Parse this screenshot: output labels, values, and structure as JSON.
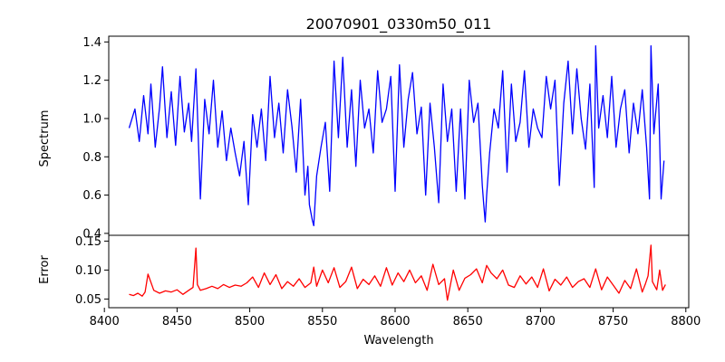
{
  "chart_data": [
    {
      "type": "line",
      "title": "20070901_0330m50_011",
      "xlabel": "",
      "ylabel": "Spectrum",
      "xlim": [
        8403,
        8802
      ],
      "ylim": [
        0.39,
        1.43
      ],
      "yticks": [
        0.4,
        0.6,
        0.8,
        1.0,
        1.2,
        1.4
      ],
      "ytick_labels": [
        "0.4",
        "0.6",
        "0.8",
        "1.0",
        "1.2",
        "1.4"
      ],
      "grid": false,
      "series": [
        {
          "color": "#0000ff",
          "x": [
            8417,
            8421,
            8424,
            8427,
            8430,
            8432,
            8435,
            8438,
            8440,
            8443,
            8446,
            8449,
            8452,
            8455,
            8458,
            8460,
            8463,
            8466,
            8469,
            8472,
            8475,
            8478,
            8481,
            8484,
            8487,
            8490,
            8493,
            8496,
            8499,
            8502,
            8505,
            8508,
            8511,
            8514,
            8517,
            8520,
            8523,
            8526,
            8529,
            8532,
            8535,
            8538,
            8540,
            8541,
            8543,
            8544,
            8546,
            8549,
            8552,
            8555,
            8558,
            8561,
            8564,
            8567,
            8570,
            8573,
            8576,
            8579,
            8582,
            8585,
            8588,
            8591,
            8594,
            8597,
            8600,
            8603,
            8606,
            8609,
            8612,
            8615,
            8618,
            8621,
            8624,
            8627,
            8630,
            8633,
            8636,
            8639,
            8642,
            8645,
            8648,
            8651,
            8654,
            8657,
            8660,
            8661,
            8662,
            8663,
            8665,
            8668,
            8671,
            8674,
            8677,
            8680,
            8683,
            8686,
            8689,
            8692,
            8695,
            8698,
            8701,
            8704,
            8707,
            8710,
            8713,
            8716,
            8719,
            8722,
            8725,
            8728,
            8731,
            8734,
            8737,
            8738,
            8740,
            8743,
            8746,
            8749,
            8752,
            8755,
            8758,
            8761,
            8764,
            8767,
            8770,
            8773,
            8775,
            8776,
            8778,
            8781,
            8783,
            8785
          ],
          "y": [
            0.95,
            1.05,
            0.88,
            1.12,
            0.92,
            1.18,
            0.85,
            1.06,
            1.27,
            0.9,
            1.14,
            0.86,
            1.22,
            0.93,
            1.08,
            0.88,
            1.26,
            0.58,
            1.1,
            0.92,
            1.2,
            0.85,
            1.04,
            0.78,
            0.95,
            0.82,
            0.7,
            0.88,
            0.55,
            1.02,
            0.85,
            1.05,
            0.78,
            1.22,
            0.9,
            1.08,
            0.82,
            1.15,
            0.96,
            0.72,
            1.1,
            0.6,
            0.75,
            0.55,
            0.47,
            0.44,
            0.7,
            0.85,
            0.98,
            0.62,
            1.3,
            0.9,
            1.32,
            0.85,
            1.15,
            0.75,
            1.2,
            0.95,
            1.05,
            0.82,
            1.25,
            0.98,
            1.05,
            1.22,
            0.62,
            1.28,
            0.85,
            1.1,
            1.24,
            0.92,
            1.06,
            0.6,
            1.08,
            0.85,
            0.56,
            1.18,
            0.88,
            1.05,
            0.62,
            1.05,
            0.58,
            1.2,
            0.98,
            1.08,
            0.65,
            0.55,
            0.46,
            0.6,
            0.82,
            1.05,
            0.95,
            1.25,
            0.72,
            1.18,
            0.88,
            0.98,
            1.25,
            0.85,
            1.05,
            0.95,
            0.9,
            1.22,
            1.05,
            1.2,
            0.65,
            1.08,
            1.3,
            0.92,
            1.26,
            1.0,
            0.84,
            1.18,
            0.64,
            1.38,
            0.95,
            1.12,
            0.9,
            1.22,
            0.85,
            1.05,
            1.15,
            0.82,
            1.08,
            0.92,
            1.15,
            0.85,
            0.58,
            1.38,
            0.92,
            1.18,
            0.58,
            0.78
          ]
        }
      ]
    },
    {
      "type": "line",
      "title": "",
      "xlabel": "Wavelength",
      "ylabel": "Error",
      "xlim": [
        8403,
        8802
      ],
      "ylim": [
        0.035,
        0.16
      ],
      "yticks": [
        0.05,
        0.1,
        0.15
      ],
      "ytick_labels": [
        "0.05",
        "0.10",
        "0.15"
      ],
      "xticks": [
        8400,
        8450,
        8500,
        8550,
        8600,
        8650,
        8700,
        8750,
        8800
      ],
      "xtick_labels": [
        "8400",
        "8450",
        "8500",
        "8550",
        "8600",
        "8650",
        "8700",
        "8750",
        "8800"
      ],
      "grid": false,
      "series": [
        {
          "color": "#ff0000",
          "x": [
            8417,
            8420,
            8423,
            8426,
            8428,
            8430,
            8434,
            8438,
            8442,
            8446,
            8450,
            8454,
            8458,
            8461,
            8463,
            8464,
            8466,
            8470,
            8474,
            8478,
            8482,
            8486,
            8490,
            8494,
            8498,
            8502,
            8506,
            8510,
            8514,
            8518,
            8522,
            8526,
            8530,
            8534,
            8538,
            8542,
            8544,
            8546,
            8550,
            8554,
            8558,
            8562,
            8566,
            8570,
            8574,
            8578,
            8582,
            8586,
            8590,
            8594,
            8598,
            8602,
            8606,
            8610,
            8614,
            8618,
            8622,
            8626,
            8630,
            8634,
            8636,
            8640,
            8644,
            8648,
            8652,
            8656,
            8660,
            8663,
            8666,
            8670,
            8674,
            8678,
            8682,
            8686,
            8690,
            8694,
            8698,
            8702,
            8706,
            8710,
            8714,
            8718,
            8722,
            8726,
            8730,
            8734,
            8738,
            8742,
            8746,
            8750,
            8754,
            8758,
            8762,
            8766,
            8770,
            8772,
            8774,
            8776,
            8777,
            8780,
            8782,
            8784,
            8786
          ],
          "y": [
            0.058,
            0.056,
            0.06,
            0.055,
            0.062,
            0.093,
            0.065,
            0.06,
            0.064,
            0.062,
            0.066,
            0.058,
            0.065,
            0.07,
            0.138,
            0.075,
            0.065,
            0.068,
            0.072,
            0.068,
            0.075,
            0.07,
            0.074,
            0.072,
            0.078,
            0.088,
            0.07,
            0.095,
            0.075,
            0.092,
            0.068,
            0.08,
            0.072,
            0.085,
            0.07,
            0.078,
            0.105,
            0.072,
            0.1,
            0.078,
            0.104,
            0.07,
            0.08,
            0.105,
            0.068,
            0.084,
            0.075,
            0.09,
            0.072,
            0.104,
            0.074,
            0.095,
            0.08,
            0.1,
            0.078,
            0.09,
            0.065,
            0.11,
            0.075,
            0.085,
            0.048,
            0.1,
            0.065,
            0.086,
            0.092,
            0.102,
            0.078,
            0.108,
            0.095,
            0.085,
            0.1,
            0.074,
            0.07,
            0.09,
            0.076,
            0.088,
            0.07,
            0.102,
            0.064,
            0.084,
            0.074,
            0.088,
            0.07,
            0.08,
            0.085,
            0.07,
            0.102,
            0.066,
            0.088,
            0.074,
            0.06,
            0.082,
            0.068,
            0.102,
            0.062,
            0.075,
            0.09,
            0.143,
            0.08,
            0.066,
            0.1,
            0.065,
            0.075
          ]
        }
      ]
    }
  ]
}
